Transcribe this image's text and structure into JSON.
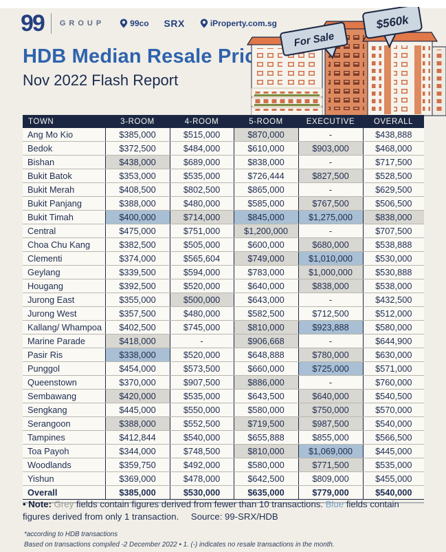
{
  "brand": {
    "logo": "99",
    "group": "GROUP",
    "partner_99co": "99co",
    "partner_srx": "SRX",
    "partner_iproperty": "iProperty.com.sg"
  },
  "title": {
    "heading": "HDB Median Resale Price*",
    "subheading": "Nov 2022 Flash Report"
  },
  "illustration": {
    "price_bubble": "$560k",
    "for_sale_bubble": "For Sale"
  },
  "colors": {
    "accent_blue": "#2e63ad",
    "navy": "#1b2742",
    "grey_cell": "#d8d7d1",
    "blue_cell": "#a9bfd3",
    "roof_orange": "#e0784a"
  },
  "legend": {
    "grey_means": "fewer than 10 transactions",
    "blue_means": "only 1 transaction"
  },
  "table": {
    "columns": [
      "TOWN",
      "3-ROOM",
      "4-ROOM",
      "5-ROOM",
      "EXECUTIVE",
      "OVERALL"
    ],
    "rows": [
      {
        "town": "Ang Mo Kio",
        "values": [
          "$385,000",
          "$515,000",
          "$870,000",
          "-",
          "$438,888"
        ],
        "shades": [
          "",
          "",
          "g",
          "",
          ""
        ]
      },
      {
        "town": "Bedok",
        "values": [
          "$372,500",
          "$484,000",
          "$610,000",
          "$903,000",
          "$468,000"
        ],
        "shades": [
          "",
          "",
          "",
          "g",
          ""
        ]
      },
      {
        "town": "Bishan",
        "values": [
          "$438,000",
          "$689,000",
          "$838,000",
          "-",
          "$717,500"
        ],
        "shades": [
          "g",
          "",
          "",
          "",
          ""
        ]
      },
      {
        "town": "Bukit Batok",
        "values": [
          "$353,000",
          "$535,000",
          "$726,444",
          "$827,500",
          "$528,500"
        ],
        "shades": [
          "",
          "",
          "",
          "g",
          ""
        ]
      },
      {
        "town": "Bukit Merah",
        "values": [
          "$408,500",
          "$802,500",
          "$865,000",
          "-",
          "$629,500"
        ],
        "shades": [
          "",
          "",
          "",
          "",
          ""
        ]
      },
      {
        "town": "Bukit Panjang",
        "values": [
          "$388,000",
          "$480,000",
          "$585,000",
          "$767,500",
          "$506,500"
        ],
        "shades": [
          "",
          "",
          "",
          "g",
          ""
        ]
      },
      {
        "town": "Bukit Timah",
        "values": [
          "$400,000",
          "$714,000",
          "$845,000",
          "$1,275,000",
          "$838,000"
        ],
        "shades": [
          "b",
          "g",
          "b",
          "b",
          "g"
        ]
      },
      {
        "town": "Central",
        "values": [
          "$475,000",
          "$751,000",
          "$1,200,000",
          "-",
          "$707,500"
        ],
        "shades": [
          "",
          "",
          "g",
          "",
          ""
        ]
      },
      {
        "town": "Choa Chu Kang",
        "values": [
          "$382,500",
          "$505,000",
          "$600,000",
          "$680,000",
          "$538,888"
        ],
        "shades": [
          "",
          "",
          "",
          "g",
          ""
        ]
      },
      {
        "town": "Clementi",
        "values": [
          "$374,000",
          "$565,604",
          "$749,000",
          "$1,010,000",
          "$530,000"
        ],
        "shades": [
          "",
          "",
          "g",
          "b",
          ""
        ]
      },
      {
        "town": "Geylang",
        "values": [
          "$339,500",
          "$594,000",
          "$783,000",
          "$1,000,000",
          "$530,888"
        ],
        "shades": [
          "",
          "",
          "",
          "g",
          ""
        ]
      },
      {
        "town": "Hougang",
        "values": [
          "$392,500",
          "$520,000",
          "$640,000",
          "$838,000",
          "$538,000"
        ],
        "shades": [
          "",
          "",
          "",
          "g",
          ""
        ]
      },
      {
        "town": "Jurong East",
        "values": [
          "$355,000",
          "$500,000",
          "$643,000",
          "-",
          "$432,500"
        ],
        "shades": [
          "",
          "g",
          "",
          "",
          ""
        ]
      },
      {
        "town": "Jurong West",
        "values": [
          "$357,500",
          "$480,000",
          "$582,500",
          "$712,500",
          "$512,000"
        ],
        "shades": [
          "",
          "",
          "",
          "",
          ""
        ]
      },
      {
        "town": "Kallang/ Whampoa",
        "values": [
          "$402,500",
          "$745,000",
          "$810,000",
          "$923,888",
          "$580,000"
        ],
        "shades": [
          "",
          "",
          "g",
          "b",
          ""
        ]
      },
      {
        "town": "Marine Parade",
        "values": [
          "$418,000",
          "-",
          "$906,668",
          "-",
          "$644,900"
        ],
        "shades": [
          "g",
          "",
          "g",
          "",
          ""
        ]
      },
      {
        "town": "Pasir Ris",
        "values": [
          "$338,000",
          "$520,000",
          "$648,888",
          "$780,000",
          "$630,000"
        ],
        "shades": [
          "b",
          "",
          "",
          "g",
          ""
        ]
      },
      {
        "town": "Punggol",
        "values": [
          "$454,000",
          "$573,500",
          "$660,000",
          "$725,000",
          "$571,000"
        ],
        "shades": [
          "",
          "",
          "",
          "b",
          ""
        ]
      },
      {
        "town": "Queenstown",
        "values": [
          "$370,000",
          "$907,500",
          "$886,000",
          "-",
          "$760,000"
        ],
        "shades": [
          "",
          "",
          "g",
          "",
          ""
        ]
      },
      {
        "town": "Sembawang",
        "values": [
          "$420,000",
          "$535,000",
          "$643,500",
          "$640,000",
          "$540,500"
        ],
        "shades": [
          "g",
          "",
          "",
          "g",
          ""
        ]
      },
      {
        "town": "Sengkang",
        "values": [
          "$445,000",
          "$550,000",
          "$580,000",
          "$750,000",
          "$570,000"
        ],
        "shades": [
          "",
          "",
          "",
          "g",
          ""
        ]
      },
      {
        "town": "Serangoon",
        "values": [
          "$388,000",
          "$552,500",
          "$719,500",
          "$987,500",
          "$540,000"
        ],
        "shades": [
          "g",
          "",
          "g",
          "g",
          ""
        ]
      },
      {
        "town": "Tampines",
        "values": [
          "$412,844",
          "$540,000",
          "$655,888",
          "$855,000",
          "$566,500"
        ],
        "shades": [
          "",
          "",
          "",
          "",
          ""
        ]
      },
      {
        "town": "Toa Payoh",
        "values": [
          "$344,000",
          "$748,500",
          "$810,000",
          "$1,069,000",
          "$445,000"
        ],
        "shades": [
          "",
          "",
          "g",
          "b",
          ""
        ]
      },
      {
        "town": "Woodlands",
        "values": [
          "$359,750",
          "$492,000",
          "$580,000",
          "$771,500",
          "$535,000"
        ],
        "shades": [
          "",
          "",
          "",
          "g",
          ""
        ]
      },
      {
        "town": "Yishun",
        "values": [
          "$369,000",
          "$478,000",
          "$642,500",
          "$809,000",
          "$455,000"
        ],
        "shades": [
          "",
          "",
          "",
          "",
          ""
        ]
      },
      {
        "town": "Overall",
        "values": [
          "$385,000",
          "$530,000",
          "$635,000",
          "$779,000",
          "$540,000"
        ],
        "shades": [
          "",
          "",
          "",
          "",
          ""
        ],
        "bold": true
      }
    ]
  },
  "note": {
    "label": "• Note:",
    "grey_word": "Grey",
    "after_grey": " fields contain figures derived from fewer than 10 transactions. ",
    "blue_word": "Blue",
    "after_blue": " fields contain figures derived from only 1 transaction.",
    "source": "Source: 99-SRX/HDB"
  },
  "footnotes": {
    "line1": "*according to HDB transactions",
    "line2": "Based on transactions compiled -2 December  2022  •  1. (-) indicates no resale transactions in the month."
  }
}
